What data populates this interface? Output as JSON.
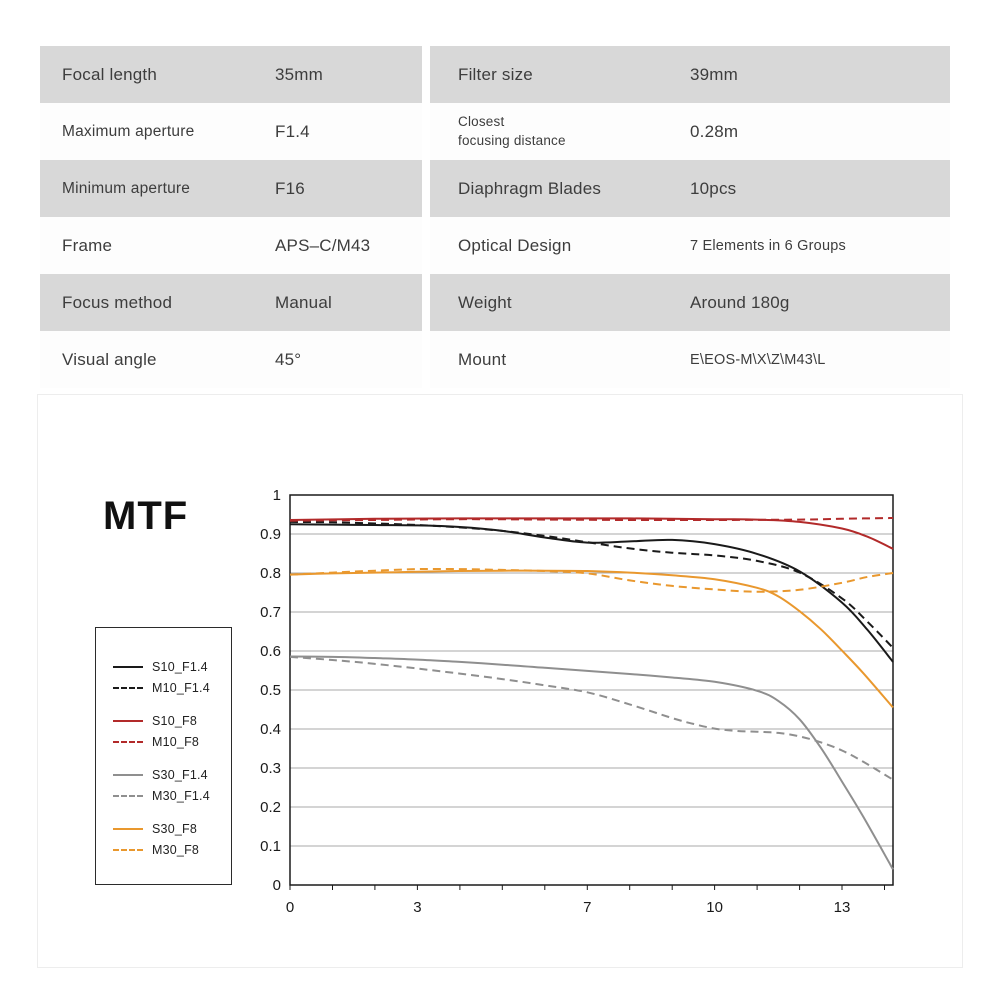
{
  "spec_table": {
    "rows": [
      {
        "left_label": "Focal length",
        "left_value": "35mm",
        "right_label": "Filter size",
        "right_value": "39mm"
      },
      {
        "left_label": "Maximum aperture",
        "left_value": "F1.4",
        "right_label": "Closest\nfocusing distance",
        "right_value": "0.28m"
      },
      {
        "left_label": "Minimum aperture",
        "left_value": "F16",
        "right_label": "Diaphragm Blades",
        "right_value": "10pcs"
      },
      {
        "left_label": "Frame",
        "left_value": "APS–C/M43",
        "right_label": "Optical Design",
        "right_value": "7 Elements in 6 Groups"
      },
      {
        "left_label": "Focus method",
        "left_value": "Manual",
        "right_label": "Weight",
        "right_value": "Around 180g"
      },
      {
        "left_label": "Visual angle",
        "left_value": "45°",
        "right_label": "Mount",
        "right_value": "E\\EOS-M\\X\\Z\\M43\\L"
      }
    ]
  },
  "chart": {
    "title": "MTF"
  },
  "chart_data": {
    "type": "line",
    "title": "MTF",
    "xlabel": "",
    "ylabel": "",
    "xlim": [
      0,
      14.2
    ],
    "ylim": [
      0,
      1
    ],
    "x_ticks": [
      0,
      3,
      7,
      10,
      13
    ],
    "y_ticks": [
      0,
      0.1,
      0.2,
      0.3,
      0.4,
      0.5,
      0.6,
      0.7,
      0.8,
      0.9,
      1
    ],
    "grid": "horizontal",
    "legend_position": "left",
    "series": [
      {
        "name": "S10_F1.4",
        "color": "#1a1a1a",
        "dashed": false,
        "points": [
          [
            0,
            0.925
          ],
          [
            1,
            0.924
          ],
          [
            2,
            0.923
          ],
          [
            3,
            0.922
          ],
          [
            4,
            0.918
          ],
          [
            5,
            0.908
          ],
          [
            6,
            0.891
          ],
          [
            7,
            0.878
          ],
          [
            8,
            0.881
          ],
          [
            9,
            0.885
          ],
          [
            10,
            0.874
          ],
          [
            11,
            0.849
          ],
          [
            12,
            0.804
          ],
          [
            13,
            0.724
          ],
          [
            13.6,
            0.654
          ],
          [
            14.2,
            0.572
          ]
        ]
      },
      {
        "name": "M10_F1.4",
        "color": "#1a1a1a",
        "dashed": true,
        "points": [
          [
            0,
            0.931
          ],
          [
            1,
            0.93
          ],
          [
            2,
            0.927
          ],
          [
            3,
            0.923
          ],
          [
            4,
            0.917
          ],
          [
            5,
            0.908
          ],
          [
            6,
            0.895
          ],
          [
            7,
            0.879
          ],
          [
            8,
            0.863
          ],
          [
            9,
            0.852
          ],
          [
            10,
            0.845
          ],
          [
            11,
            0.831
          ],
          [
            12,
            0.801
          ],
          [
            13,
            0.735
          ],
          [
            13.6,
            0.675
          ],
          [
            14.2,
            0.608
          ]
        ]
      },
      {
        "name": "S10_F8",
        "color": "#b22a2a",
        "dashed": false,
        "points": [
          [
            0,
            0.936
          ],
          [
            2,
            0.939
          ],
          [
            4,
            0.94
          ],
          [
            6,
            0.94
          ],
          [
            8,
            0.94
          ],
          [
            10,
            0.938
          ],
          [
            11,
            0.937
          ],
          [
            12,
            0.931
          ],
          [
            13,
            0.914
          ],
          [
            13.6,
            0.893
          ],
          [
            14.2,
            0.862
          ]
        ]
      },
      {
        "name": "M10_F8",
        "color": "#b22a2a",
        "dashed": true,
        "points": [
          [
            0,
            0.934
          ],
          [
            2,
            0.936
          ],
          [
            4,
            0.938
          ],
          [
            6,
            0.937
          ],
          [
            8,
            0.936
          ],
          [
            10,
            0.936
          ],
          [
            12,
            0.937
          ],
          [
            13,
            0.939
          ],
          [
            14.2,
            0.941
          ]
        ]
      },
      {
        "name": "S30_F1.4",
        "color": "#8f8f8f",
        "dashed": false,
        "points": [
          [
            0,
            0.586
          ],
          [
            1,
            0.585
          ],
          [
            2,
            0.582
          ],
          [
            3,
            0.578
          ],
          [
            4,
            0.572
          ],
          [
            5,
            0.565
          ],
          [
            6,
            0.557
          ],
          [
            7,
            0.549
          ],
          [
            8,
            0.541
          ],
          [
            9,
            0.532
          ],
          [
            10,
            0.521
          ],
          [
            11,
            0.498
          ],
          [
            11.5,
            0.472
          ],
          [
            12,
            0.425
          ],
          [
            12.5,
            0.352
          ],
          [
            13,
            0.265
          ],
          [
            13.5,
            0.175
          ],
          [
            14.2,
            0.04
          ]
        ]
      },
      {
        "name": "M30_F1.4",
        "color": "#8f8f8f",
        "dashed": true,
        "points": [
          [
            0,
            0.585
          ],
          [
            1,
            0.577
          ],
          [
            2,
            0.567
          ],
          [
            3,
            0.555
          ],
          [
            4,
            0.542
          ],
          [
            5,
            0.528
          ],
          [
            6,
            0.512
          ],
          [
            7,
            0.494
          ],
          [
            8,
            0.463
          ],
          [
            9,
            0.428
          ],
          [
            9.5,
            0.413
          ],
          [
            10,
            0.401
          ],
          [
            10.5,
            0.395
          ],
          [
            11,
            0.393
          ],
          [
            11.5,
            0.39
          ],
          [
            12,
            0.381
          ],
          [
            12.5,
            0.366
          ],
          [
            13,
            0.345
          ],
          [
            13.5,
            0.316
          ],
          [
            14.2,
            0.27
          ]
        ]
      },
      {
        "name": "S30_F8",
        "color": "#e9982e",
        "dashed": false,
        "points": [
          [
            0,
            0.796
          ],
          [
            1,
            0.799
          ],
          [
            2,
            0.801
          ],
          [
            3,
            0.803
          ],
          [
            4,
            0.805
          ],
          [
            5,
            0.806
          ],
          [
            6,
            0.806
          ],
          [
            7,
            0.805
          ],
          [
            8,
            0.801
          ],
          [
            9,
            0.794
          ],
          [
            10,
            0.784
          ],
          [
            11,
            0.762
          ],
          [
            11.5,
            0.74
          ],
          [
            12,
            0.702
          ],
          [
            12.5,
            0.656
          ],
          [
            13,
            0.601
          ],
          [
            13.5,
            0.543
          ],
          [
            14.2,
            0.455
          ]
        ]
      },
      {
        "name": "M30_F8",
        "color": "#e9982e",
        "dashed": true,
        "points": [
          [
            0,
            0.796
          ],
          [
            1,
            0.801
          ],
          [
            2,
            0.806
          ],
          [
            3,
            0.81
          ],
          [
            4,
            0.81
          ],
          [
            5,
            0.808
          ],
          [
            6,
            0.805
          ],
          [
            7,
            0.799
          ],
          [
            8,
            0.781
          ],
          [
            9,
            0.767
          ],
          [
            10,
            0.758
          ],
          [
            11,
            0.752
          ],
          [
            12,
            0.757
          ],
          [
            13,
            0.775
          ],
          [
            13.6,
            0.79
          ],
          [
            14.2,
            0.8
          ]
        ]
      }
    ]
  }
}
